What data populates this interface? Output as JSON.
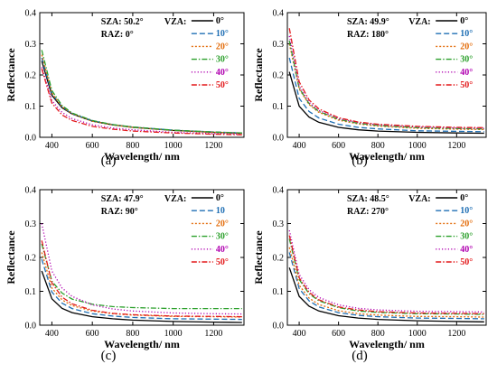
{
  "chart_data": [
    {
      "type": "line",
      "panel_label": "(a)",
      "xlabel": "Wavelength/ nm",
      "ylabel": "Reflectance",
      "xlim": [
        340,
        1350
      ],
      "ylim": [
        0,
        0.4
      ],
      "xticks": [
        400,
        600,
        800,
        1000,
        1200
      ],
      "yticks": [
        0.0,
        0.1,
        0.2,
        0.3,
        0.4
      ],
      "xtick_labels": [
        "400",
        "600",
        "800",
        "1000",
        "1200"
      ],
      "ytick_labels": [
        "0.0",
        "0.1",
        "0.2",
        "0.3",
        "0.4"
      ],
      "annotations": {
        "sza": "SZA: 50.2°",
        "raz": "RAZ: 0°",
        "vza_title": "VZA:"
      },
      "legend_position": "top-right",
      "x": [
        350,
        400,
        450,
        500,
        600,
        700,
        800,
        1000,
        1200,
        1340
      ],
      "series": [
        {
          "name": "0°",
          "color": "#000000",
          "dash": "solid",
          "values": [
            0.245,
            0.135,
            0.095,
            0.075,
            0.052,
            0.04,
            0.032,
            0.022,
            0.016,
            0.013
          ]
        },
        {
          "name": "10°",
          "color": "#1f6fb4",
          "dash": "dash",
          "values": [
            0.255,
            0.14,
            0.098,
            0.076,
            0.053,
            0.041,
            0.033,
            0.023,
            0.017,
            0.014
          ]
        },
        {
          "name": "20°",
          "color": "#e36c0a",
          "dash": "dot",
          "values": [
            0.265,
            0.142,
            0.098,
            0.076,
            0.052,
            0.04,
            0.032,
            0.022,
            0.016,
            0.013
          ]
        },
        {
          "name": "30°",
          "color": "#2ca02c",
          "dash": "dashdot",
          "values": [
            0.28,
            0.15,
            0.102,
            0.078,
            0.054,
            0.041,
            0.033,
            0.023,
            0.017,
            0.014
          ]
        },
        {
          "name": "40°",
          "color": "#b000b0",
          "dash": "dense",
          "values": [
            0.225,
            0.118,
            0.08,
            0.06,
            0.04,
            0.03,
            0.024,
            0.016,
            0.012,
            0.01
          ]
        },
        {
          "name": "50°",
          "color": "#e31a1c",
          "dash": "dashdot",
          "values": [
            0.22,
            0.11,
            0.072,
            0.054,
            0.035,
            0.026,
            0.02,
            0.014,
            0.01,
            0.008
          ]
        }
      ]
    },
    {
      "type": "line",
      "panel_label": "(b)",
      "xlabel": "Wavelength/ nm",
      "ylabel": "Reflectance",
      "xlim": [
        340,
        1350
      ],
      "ylim": [
        0,
        0.4
      ],
      "xticks": [
        400,
        600,
        800,
        1000,
        1200
      ],
      "yticks": [
        0.0,
        0.1,
        0.2,
        0.3,
        0.4
      ],
      "xtick_labels": [
        "400",
        "600",
        "800",
        "1000",
        "1200"
      ],
      "ytick_labels": [
        "0.0",
        "0.1",
        "0.2",
        "0.3",
        "0.4"
      ],
      "annotations": {
        "sza": "SZA: 49.9°",
        "raz": "RAZ: 180°",
        "vza_title": "VZA:"
      },
      "legend_position": "top-right",
      "x": [
        350,
        400,
        450,
        500,
        600,
        700,
        800,
        1000,
        1200,
        1340
      ],
      "series": [
        {
          "name": "0°",
          "color": "#000000",
          "dash": "solid",
          "values": [
            0.21,
            0.1,
            0.065,
            0.048,
            0.032,
            0.024,
            0.02,
            0.016,
            0.014,
            0.013
          ]
        },
        {
          "name": "10°",
          "color": "#1f6fb4",
          "dash": "dash",
          "values": [
            0.255,
            0.125,
            0.083,
            0.062,
            0.042,
            0.032,
            0.027,
            0.021,
            0.019,
            0.018
          ]
        },
        {
          "name": "20°",
          "color": "#e36c0a",
          "dash": "dot",
          "values": [
            0.3,
            0.155,
            0.105,
            0.08,
            0.055,
            0.043,
            0.036,
            0.029,
            0.026,
            0.025
          ]
        },
        {
          "name": "30°",
          "color": "#2ca02c",
          "dash": "dashdot",
          "values": [
            0.31,
            0.158,
            0.108,
            0.083,
            0.058,
            0.045,
            0.038,
            0.031,
            0.028,
            0.027
          ]
        },
        {
          "name": "40°",
          "color": "#b000b0",
          "dash": "dense",
          "values": [
            0.325,
            0.165,
            0.112,
            0.086,
            0.06,
            0.047,
            0.04,
            0.033,
            0.03,
            0.029
          ]
        },
        {
          "name": "50°",
          "color": "#e31a1c",
          "dash": "dashdot",
          "values": [
            0.35,
            0.178,
            0.12,
            0.091,
            0.063,
            0.049,
            0.042,
            0.035,
            0.032,
            0.031
          ]
        }
      ]
    },
    {
      "type": "line",
      "panel_label": "(c)",
      "xlabel": "Wavelength/ nm",
      "ylabel": "Reflectance",
      "xlim": [
        340,
        1350
      ],
      "ylim": [
        0,
        0.4
      ],
      "xticks": [
        400,
        600,
        800,
        1000,
        1200
      ],
      "yticks": [
        0.0,
        0.1,
        0.2,
        0.3,
        0.4
      ],
      "xtick_labels": [
        "400",
        "600",
        "800",
        "1000",
        "1200"
      ],
      "ytick_labels": [
        "0.0",
        "0.1",
        "0.2",
        "0.3",
        "0.4"
      ],
      "annotations": {
        "sza": "SZA: 47.9°",
        "raz": "RAZ: 90°",
        "vza_title": "VZA:"
      },
      "legend_position": "top-right",
      "x": [
        350,
        400,
        450,
        500,
        600,
        700,
        800,
        1000,
        1200,
        1340
      ],
      "series": [
        {
          "name": "0°",
          "color": "#000000",
          "dash": "solid",
          "values": [
            0.16,
            0.078,
            0.05,
            0.037,
            0.025,
            0.019,
            0.015,
            0.011,
            0.009,
            0.008
          ]
        },
        {
          "name": "10",
          "color": "#1f6fb4",
          "dash": "dash",
          "values": [
            0.195,
            0.098,
            0.065,
            0.049,
            0.034,
            0.027,
            0.023,
            0.019,
            0.018,
            0.017
          ]
        },
        {
          "name": "20°",
          "color": "#e36c0a",
          "dash": "dot",
          "values": [
            0.215,
            0.11,
            0.075,
            0.058,
            0.042,
            0.034,
            0.03,
            0.026,
            0.025,
            0.024
          ]
        },
        {
          "name": "30°",
          "color": "#2ca02c",
          "dash": "dashdot",
          "values": [
            0.24,
            0.13,
            0.095,
            0.077,
            0.062,
            0.055,
            0.052,
            0.049,
            0.049,
            0.049
          ]
        },
        {
          "name": "40°",
          "color": "#b000b0",
          "dash": "dense",
          "values": [
            0.3,
            0.16,
            0.11,
            0.085,
            0.06,
            0.048,
            0.042,
            0.036,
            0.034,
            0.033
          ]
        },
        {
          "name": "50°",
          "color": "#e31a1c",
          "dash": "dashdot",
          "values": [
            0.25,
            0.125,
            0.083,
            0.063,
            0.044,
            0.035,
            0.031,
            0.027,
            0.026,
            0.025
          ]
        }
      ]
    },
    {
      "type": "line",
      "panel_label": "(d)",
      "xlabel": "Wavelength/ nm",
      "ylabel": "Reflectance",
      "xlim": [
        340,
        1350
      ],
      "ylim": [
        0,
        0.4
      ],
      "xticks": [
        400,
        600,
        800,
        1000,
        1200
      ],
      "yticks": [
        0.0,
        0.1,
        0.2,
        0.3,
        0.4
      ],
      "xtick_labels": [
        "400",
        "600",
        "800",
        "1000",
        "1200"
      ],
      "ytick_labels": [
        "0.0",
        "0.1",
        "0.2",
        "0.3",
        "0.4"
      ],
      "annotations": {
        "sza": "SZA: 48.5°",
        "raz": "RAZ: 270°",
        "vza_title": "VZA:"
      },
      "legend_position": "top-right",
      "x": [
        350,
        400,
        450,
        500,
        600,
        700,
        800,
        1000,
        1200,
        1340
      ],
      "series": [
        {
          "name": "0°",
          "color": "#000000",
          "dash": "solid",
          "values": [
            0.17,
            0.085,
            0.056,
            0.042,
            0.028,
            0.021,
            0.017,
            0.013,
            0.011,
            0.01
          ]
        },
        {
          "name": "10°",
          "color": "#1f6fb4",
          "dash": "dash",
          "values": [
            0.215,
            0.108,
            0.072,
            0.054,
            0.037,
            0.029,
            0.025,
            0.021,
            0.02,
            0.019
          ]
        },
        {
          "name": "20°",
          "color": "#e36c0a",
          "dash": "dot",
          "values": [
            0.23,
            0.118,
            0.08,
            0.061,
            0.043,
            0.034,
            0.03,
            0.026,
            0.025,
            0.024
          ]
        },
        {
          "name": "30°",
          "color": "#2ca02c",
          "dash": "dashdot",
          "values": [
            0.255,
            0.135,
            0.093,
            0.072,
            0.052,
            0.042,
            0.038,
            0.034,
            0.033,
            0.032
          ]
        },
        {
          "name": "40°",
          "color": "#b000b0",
          "dash": "dense",
          "values": [
            0.28,
            0.15,
            0.105,
            0.082,
            0.06,
            0.05,
            0.045,
            0.041,
            0.04,
            0.039
          ]
        },
        {
          "name": "50°",
          "color": "#e31a1c",
          "dash": "dashdot",
          "values": [
            0.265,
            0.14,
            0.097,
            0.075,
            0.054,
            0.045,
            0.04,
            0.036,
            0.035,
            0.034
          ]
        }
      ]
    }
  ]
}
